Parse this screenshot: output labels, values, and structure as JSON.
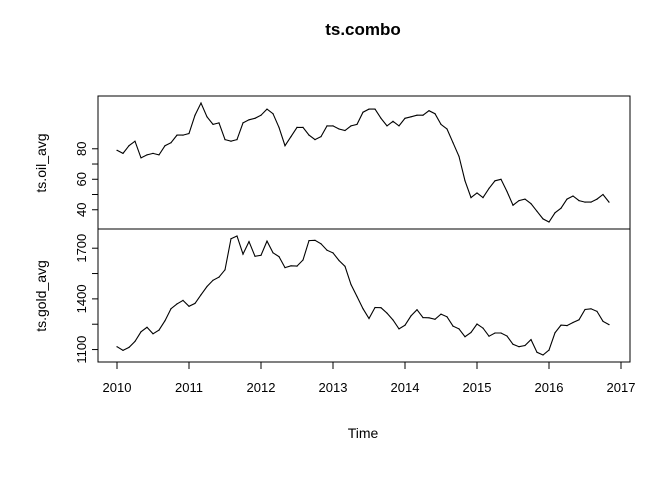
{
  "chart_data": {
    "type": "line",
    "title": "ts.combo",
    "xlabel": "Time",
    "x_ticks": [
      "2010",
      "2011",
      "2012",
      "2013",
      "2014",
      "2015",
      "2016",
      "2017"
    ],
    "xlim": [
      2010,
      2017
    ],
    "grid": false,
    "series": [
      {
        "name": "ts.oil_avg",
        "ylabel": "ts.oil_avg",
        "y_ticks": [
          "40",
          "60",
          "80"
        ],
        "ylim": [
          30,
          112
        ],
        "x": [
          2010.0,
          2010.083,
          2010.167,
          2010.25,
          2010.333,
          2010.417,
          2010.5,
          2010.583,
          2010.667,
          2010.75,
          2010.833,
          2010.917,
          2011.0,
          2011.083,
          2011.167,
          2011.25,
          2011.333,
          2011.417,
          2011.5,
          2011.583,
          2011.667,
          2011.75,
          2011.833,
          2011.917,
          2012.0,
          2012.083,
          2012.167,
          2012.25,
          2012.333,
          2012.417,
          2012.5,
          2012.583,
          2012.667,
          2012.75,
          2012.833,
          2012.917,
          2013.0,
          2013.083,
          2013.167,
          2013.25,
          2013.333,
          2013.417,
          2013.5,
          2013.583,
          2013.667,
          2013.75,
          2013.833,
          2013.917,
          2014.0,
          2014.083,
          2014.167,
          2014.25,
          2014.333,
          2014.417,
          2014.5,
          2014.583,
          2014.667,
          2014.75,
          2014.833,
          2014.917,
          2015.0,
          2015.083,
          2015.167,
          2015.25,
          2015.333,
          2015.417,
          2015.5,
          2015.583,
          2015.667,
          2015.75,
          2015.833,
          2015.917,
          2016.0,
          2016.083,
          2016.167,
          2016.25,
          2016.333,
          2016.417,
          2016.5,
          2016.583,
          2016.667,
          2016.75,
          2016.833
        ],
        "values": [
          79,
          77,
          82,
          85,
          74,
          76,
          77,
          76,
          82,
          84,
          89,
          89,
          90,
          102,
          110,
          101,
          96,
          97,
          86,
          85,
          86,
          97,
          99,
          100,
          102,
          106,
          103,
          94,
          82,
          88,
          94,
          94,
          89,
          86,
          88,
          95,
          95,
          93,
          92,
          95,
          96,
          104,
          106,
          106,
          100,
          95,
          98,
          95,
          100,
          101,
          102,
          102,
          105,
          103,
          96,
          93,
          84,
          75,
          59,
          48,
          51,
          48,
          54,
          59,
          60,
          52,
          43,
          46,
          47,
          44,
          39,
          34,
          32,
          38,
          41,
          47,
          49,
          46,
          45,
          45,
          47,
          50,
          45
        ]
      },
      {
        "name": "ts.gold_avg",
        "ylabel": "ts.gold_avg",
        "y_ticks": [
          "1100",
          "1400",
          "1700"
        ],
        "ylim": [
          1050,
          1790
        ],
        "x": [
          2010.0,
          2010.083,
          2010.167,
          2010.25,
          2010.333,
          2010.417,
          2010.5,
          2010.583,
          2010.667,
          2010.75,
          2010.833,
          2010.917,
          2011.0,
          2011.083,
          2011.167,
          2011.25,
          2011.333,
          2011.417,
          2011.5,
          2011.583,
          2011.667,
          2011.75,
          2011.833,
          2011.917,
          2012.0,
          2012.083,
          2012.167,
          2012.25,
          2012.333,
          2012.417,
          2012.5,
          2012.583,
          2012.667,
          2012.75,
          2012.833,
          2012.917,
          2013.0,
          2013.083,
          2013.167,
          2013.25,
          2013.333,
          2013.417,
          2013.5,
          2013.583,
          2013.667,
          2013.75,
          2013.833,
          2013.917,
          2014.0,
          2014.083,
          2014.167,
          2014.25,
          2014.333,
          2014.417,
          2014.5,
          2014.583,
          2014.667,
          2014.75,
          2014.833,
          2014.917,
          2015.0,
          2015.083,
          2015.167,
          2015.25,
          2015.333,
          2015.417,
          2015.5,
          2015.583,
          2015.667,
          2015.75,
          2015.833,
          2015.917,
          2016.0,
          2016.083,
          2016.167,
          2016.25,
          2016.333,
          2016.417,
          2016.5,
          2016.583,
          2016.667,
          2016.75,
          2016.833
        ],
        "values": [
          1117,
          1095,
          1113,
          1148,
          1205,
          1232,
          1193,
          1215,
          1271,
          1342,
          1370,
          1391,
          1356,
          1373,
          1424,
          1473,
          1510,
          1529,
          1572,
          1756,
          1772,
          1665,
          1739,
          1652,
          1658,
          1742,
          1673,
          1650,
          1585,
          1596,
          1594,
          1630,
          1745,
          1747,
          1726,
          1688,
          1672,
          1627,
          1593,
          1485,
          1414,
          1342,
          1284,
          1349,
          1348,
          1316,
          1275,
          1222,
          1244,
          1299,
          1336,
          1289,
          1288,
          1279,
          1310,
          1294,
          1239,
          1222,
          1176,
          1201,
          1251,
          1227,
          1179,
          1198,
          1198,
          1180,
          1131,
          1117,
          1124,
          1159,
          1084,
          1068,
          1097,
          1199,
          1245,
          1242,
          1260,
          1276,
          1337,
          1341,
          1326,
          1267,
          1248
        ]
      }
    ]
  }
}
